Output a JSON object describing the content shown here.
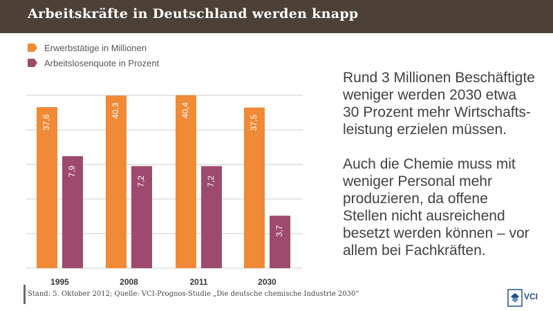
{
  "header": {
    "title": "Arbeitskräfte in Deutschland werden knapp"
  },
  "colors": {
    "orange": "#f08a36",
    "purple": "#9e4a6e",
    "header_bg": "#4d4137",
    "grid": "#cccccc"
  },
  "chart_data": {
    "type": "bar",
    "categories": [
      "1995",
      "2008",
      "2011",
      "2030"
    ],
    "series": [
      {
        "name": "Erwerbstätige in Millionen",
        "values": [
          37.6,
          40.3,
          40.4,
          37.5
        ],
        "labels": [
          "37,6",
          "40,3",
          "40,4",
          "37,5"
        ],
        "color": "#f08a36"
      },
      {
        "name": "Arbeitslosenquote in Prozent",
        "values": [
          7.9,
          7.2,
          7.2,
          3.7
        ],
        "labels": [
          "7,9",
          "7,2",
          "7,2",
          "3,7"
        ],
        "color": "#9e4a6e"
      }
    ],
    "legend_position": "top-left",
    "grid": true,
    "title": "",
    "xlabel": "",
    "ylabel": ""
  },
  "text_panel": {
    "paragraph1": [
      "Rund 3 Millionen Beschäftigte",
      "weniger werden 2030 etwa",
      "30 Prozent mehr Wirtschafts-",
      "leistung erzielen müssen."
    ],
    "paragraph2": [
      "Auch die Chemie muss mit",
      "weniger Personal mehr",
      "produzieren, da offene",
      "Stellen nicht ausreichend",
      "besetzt werden können – vor",
      "allem bei Fachkräften."
    ]
  },
  "footer": {
    "source": "Stand: 5. Oktober 2012; Quelle: VCI-Prognos-Studie „Die deutsche chemische Industrie 2030“"
  },
  "logo": {
    "text": "VCI"
  }
}
